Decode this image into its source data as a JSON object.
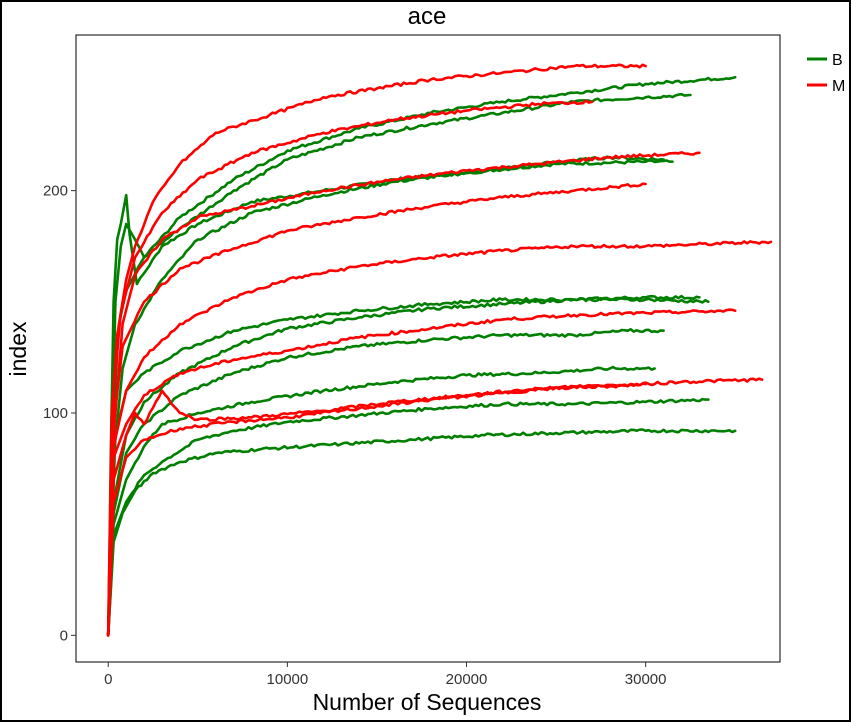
{
  "chart_data": {
    "type": "line",
    "title": "ace",
    "xlabel": "Number of Sequences",
    "ylabel": "index",
    "xlim": [
      -1800,
      37500
    ],
    "ylim": [
      -12,
      270
    ],
    "grid": false,
    "legend_placement": "right",
    "x_ticks": [
      0,
      10000,
      20000,
      30000
    ],
    "y_ticks": [
      0,
      100,
      200
    ],
    "legend": [
      {
        "label": "B",
        "color": "#007F00"
      },
      {
        "label": "M",
        "color": "#FF0000"
      }
    ],
    "series": [
      {
        "group": "B",
        "color": "#007F00",
        "points": [
          [
            0,
            0
          ],
          [
            150,
            85
          ],
          [
            300,
            150
          ],
          [
            500,
            178
          ],
          [
            700,
            185
          ],
          [
            1000,
            198
          ],
          [
            1200,
            180
          ],
          [
            1600,
            158
          ],
          [
            3000,
            175
          ],
          [
            5000,
            185
          ],
          [
            8000,
            195
          ],
          [
            12000,
            200
          ],
          [
            16000,
            205
          ],
          [
            20000,
            208
          ],
          [
            25000,
            212
          ],
          [
            30000,
            213
          ],
          [
            31500,
            213
          ]
        ]
      },
      {
        "group": "B",
        "color": "#007F00",
        "points": [
          [
            0,
            0
          ],
          [
            200,
            80
          ],
          [
            400,
            150
          ],
          [
            700,
            175
          ],
          [
            1000,
            185
          ],
          [
            1500,
            178
          ],
          [
            2000,
            170
          ],
          [
            4000,
            188
          ],
          [
            7000,
            205
          ],
          [
            10000,
            218
          ],
          [
            14000,
            228
          ],
          [
            18000,
            235
          ],
          [
            22000,
            240
          ],
          [
            26000,
            244
          ],
          [
            30000,
            248
          ],
          [
            35000,
            251
          ]
        ]
      },
      {
        "group": "B",
        "color": "#007F00",
        "points": [
          [
            0,
            0
          ],
          [
            300,
            100
          ],
          [
            600,
            140
          ],
          [
            1000,
            155
          ],
          [
            2000,
            170
          ],
          [
            4000,
            183
          ],
          [
            7000,
            200
          ],
          [
            10000,
            214
          ],
          [
            14000,
            224
          ],
          [
            18000,
            230
          ],
          [
            22000,
            235
          ],
          [
            26000,
            240
          ],
          [
            30000,
            242
          ],
          [
            32500,
            243
          ]
        ]
      },
      {
        "group": "B",
        "color": "#007F00",
        "points": [
          [
            0,
            0
          ],
          [
            300,
            80
          ],
          [
            800,
            120
          ],
          [
            1500,
            140
          ],
          [
            3000,
            160
          ],
          [
            5000,
            178
          ],
          [
            8000,
            190
          ],
          [
            12000,
            198
          ],
          [
            16000,
            204
          ],
          [
            20000,
            208
          ],
          [
            24000,
            212
          ],
          [
            28000,
            215
          ],
          [
            31000,
            214
          ]
        ]
      },
      {
        "group": "B",
        "color": "#007F00",
        "points": [
          [
            0,
            0
          ],
          [
            300,
            60
          ],
          [
            1000,
            90
          ],
          [
            2000,
            105
          ],
          [
            4000,
            118
          ],
          [
            7000,
            130
          ],
          [
            10000,
            138
          ],
          [
            14000,
            143
          ],
          [
            18000,
            147
          ],
          [
            22000,
            149
          ],
          [
            26000,
            151
          ],
          [
            30000,
            152
          ],
          [
            33000,
            152
          ]
        ]
      },
      {
        "group": "B",
        "color": "#007F00",
        "points": [
          [
            0,
            0
          ],
          [
            300,
            55
          ],
          [
            1000,
            82
          ],
          [
            2000,
            95
          ],
          [
            4000,
            108
          ],
          [
            7000,
            118
          ],
          [
            10000,
            125
          ],
          [
            14000,
            130
          ],
          [
            18000,
            133
          ],
          [
            22000,
            135
          ],
          [
            26000,
            135
          ],
          [
            29000,
            137
          ],
          [
            31000,
            137
          ]
        ]
      },
      {
        "group": "B",
        "color": "#007F00",
        "points": [
          [
            0,
            0
          ],
          [
            300,
            50
          ],
          [
            1000,
            70
          ],
          [
            2000,
            85
          ],
          [
            3000,
            95
          ],
          [
            5000,
            100
          ],
          [
            8000,
            105
          ],
          [
            12000,
            110
          ],
          [
            16000,
            114
          ],
          [
            20000,
            117
          ],
          [
            24000,
            118
          ],
          [
            28000,
            120
          ],
          [
            30500,
            120
          ]
        ]
      },
      {
        "group": "B",
        "color": "#007F00",
        "points": [
          [
            0,
            0
          ],
          [
            300,
            45
          ],
          [
            1000,
            60
          ],
          [
            2000,
            72
          ],
          [
            3000,
            78
          ],
          [
            5000,
            88
          ],
          [
            7000,
            92
          ],
          [
            10000,
            96
          ],
          [
            14000,
            99
          ],
          [
            18000,
            102
          ],
          [
            22000,
            104
          ],
          [
            26000,
            104
          ],
          [
            30000,
            105
          ],
          [
            33500,
            106
          ]
        ]
      },
      {
        "group": "B",
        "color": "#007F00",
        "points": [
          [
            0,
            0
          ],
          [
            300,
            42
          ],
          [
            800,
            55
          ],
          [
            1500,
            65
          ],
          [
            2500,
            73
          ],
          [
            4000,
            78
          ],
          [
            6000,
            82
          ],
          [
            9000,
            84
          ],
          [
            13000,
            86
          ],
          [
            17000,
            88
          ],
          [
            21000,
            90
          ],
          [
            25000,
            91
          ],
          [
            30000,
            92
          ],
          [
            35000,
            92
          ]
        ]
      },
      {
        "group": "B",
        "color": "#007F00",
        "points": [
          [
            0,
            0
          ],
          [
            400,
            90
          ],
          [
            1000,
            110
          ],
          [
            2000,
            118
          ],
          [
            4000,
            128
          ],
          [
            7000,
            137
          ],
          [
            10000,
            142
          ],
          [
            14000,
            146
          ],
          [
            18000,
            149
          ],
          [
            22000,
            151
          ],
          [
            26000,
            151
          ],
          [
            30000,
            151
          ],
          [
            33500,
            150
          ]
        ]
      },
      {
        "group": "M",
        "color": "#FF0000",
        "points": [
          [
            0,
            0
          ],
          [
            200,
            100
          ],
          [
            500,
            135
          ],
          [
            1000,
            160
          ],
          [
            1500,
            175
          ],
          [
            2500,
            195
          ],
          [
            4000,
            212
          ],
          [
            6000,
            226
          ],
          [
            9000,
            234
          ],
          [
            12000,
            242
          ],
          [
            15000,
            246
          ],
          [
            18000,
            250
          ],
          [
            22000,
            253
          ],
          [
            26000,
            256
          ],
          [
            30000,
            256
          ]
        ]
      },
      {
        "group": "M",
        "color": "#FF0000",
        "points": [
          [
            0,
            0
          ],
          [
            300,
            110
          ],
          [
            700,
            145
          ],
          [
            1500,
            170
          ],
          [
            3000,
            190
          ],
          [
            5000,
            205
          ],
          [
            8000,
            217
          ],
          [
            12000,
            226
          ],
          [
            16000,
            232
          ],
          [
            20000,
            236
          ],
          [
            24000,
            239
          ],
          [
            27000,
            240
          ]
        ]
      },
      {
        "group": "M",
        "color": "#FF0000",
        "points": [
          [
            0,
            0
          ],
          [
            300,
            90
          ],
          [
            800,
            140
          ],
          [
            1500,
            162
          ],
          [
            3000,
            178
          ],
          [
            5000,
            188
          ],
          [
            8000,
            193
          ],
          [
            12000,
            200
          ],
          [
            16000,
            205
          ],
          [
            20000,
            209
          ],
          [
            24000,
            212
          ],
          [
            28000,
            215
          ],
          [
            33000,
            217
          ]
        ]
      },
      {
        "group": "M",
        "color": "#FF0000",
        "points": [
          [
            0,
            0
          ],
          [
            300,
            95
          ],
          [
            800,
            130
          ],
          [
            2000,
            150
          ],
          [
            4000,
            165
          ],
          [
            7000,
            174
          ],
          [
            10000,
            182
          ],
          [
            14000,
            188
          ],
          [
            18000,
            193
          ],
          [
            22000,
            197
          ],
          [
            26000,
            200
          ],
          [
            30000,
            203
          ]
        ]
      },
      {
        "group": "M",
        "color": "#FF0000",
        "points": [
          [
            0,
            0
          ],
          [
            300,
            85
          ],
          [
            1000,
            110
          ],
          [
            2000,
            125
          ],
          [
            4000,
            140
          ],
          [
            7000,
            152
          ],
          [
            10000,
            160
          ],
          [
            14000,
            166
          ],
          [
            18000,
            170
          ],
          [
            22000,
            173
          ],
          [
            26000,
            175
          ],
          [
            30000,
            175
          ],
          [
            37000,
            177
          ]
        ]
      },
      {
        "group": "M",
        "color": "#FF0000",
        "points": [
          [
            0,
            0
          ],
          [
            300,
            80
          ],
          [
            1000,
            95
          ],
          [
            2000,
            108
          ],
          [
            4000,
            118
          ],
          [
            7000,
            124
          ],
          [
            10000,
            128
          ],
          [
            14000,
            134
          ],
          [
            18000,
            138
          ],
          [
            22000,
            142
          ],
          [
            26000,
            144
          ],
          [
            30000,
            145
          ],
          [
            35000,
            146
          ]
        ]
      },
      {
        "group": "M",
        "color": "#FF0000",
        "points": [
          [
            0,
            0
          ],
          [
            300,
            70
          ],
          [
            1000,
            90
          ],
          [
            1500,
            100
          ],
          [
            2000,
            95
          ],
          [
            3000,
            110
          ],
          [
            4000,
            100
          ],
          [
            5000,
            97
          ],
          [
            8000,
            98
          ],
          [
            12000,
            101
          ],
          [
            16000,
            105
          ],
          [
            20000,
            108
          ],
          [
            24000,
            111
          ],
          [
            28000,
            112
          ],
          [
            32000,
            114
          ],
          [
            36500,
            115
          ]
        ]
      },
      {
        "group": "M",
        "color": "#FF0000",
        "points": [
          [
            0,
            0
          ],
          [
            300,
            60
          ],
          [
            1000,
            80
          ],
          [
            2000,
            88
          ],
          [
            4000,
            93
          ],
          [
            7000,
            96
          ],
          [
            10000,
            98
          ],
          [
            14000,
            102
          ],
          [
            18000,
            106
          ],
          [
            22000,
            109
          ],
          [
            26000,
            112
          ],
          [
            30000,
            113
          ]
        ]
      }
    ]
  }
}
